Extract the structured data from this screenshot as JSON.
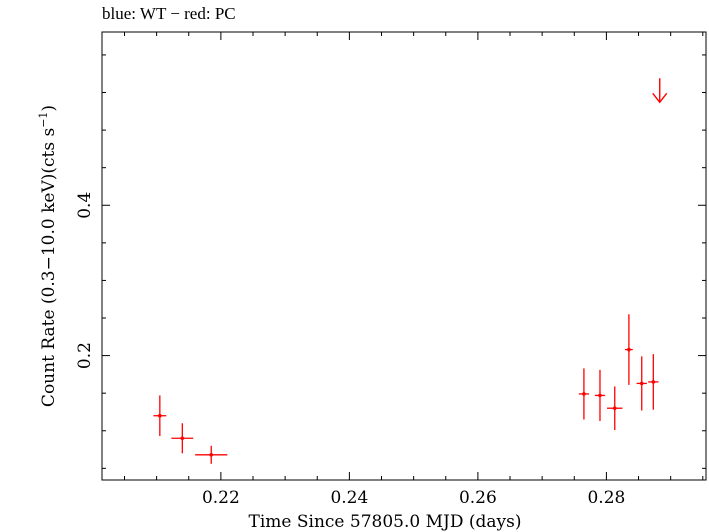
{
  "chart_data": {
    "type": "scatter",
    "title": "blue: WT − red: PC",
    "xlabel": "Time Since 57805.0 MJD (days)",
    "ylabel_main": "Count Rate (0.3−10.0 keV)(cts s",
    "ylabel_sup": "−1",
    "ylabel_close": ")",
    "xlim": [
      0.2015,
      0.2955
    ],
    "ylim": [
      0.0345,
      0.6305
    ],
    "x_ticks": [
      0.22,
      0.24,
      0.26,
      0.28
    ],
    "x_tick_labels": [
      "0.22",
      "0.24",
      "0.26",
      "0.28"
    ],
    "y_ticks": [
      0.2,
      0.4
    ],
    "y_tick_labels": [
      "0.2",
      "0.4"
    ],
    "grid": false,
    "series": [
      {
        "color": "#ff0000",
        "points": [
          {
            "x": 0.2105,
            "xerr": 0.001,
            "y": 0.12,
            "yerr_lo": 0.027,
            "yerr_hi": 0.027
          },
          {
            "x": 0.214,
            "xerr": 0.0017,
            "y": 0.09,
            "yerr_lo": 0.02,
            "yerr_hi": 0.02
          },
          {
            "x": 0.2185,
            "xerr": 0.0025,
            "y": 0.068,
            "yerr_lo": 0.012,
            "yerr_hi": 0.012
          },
          {
            "x": 0.2765,
            "xerr": 0.0008,
            "y": 0.149,
            "yerr_lo": 0.034,
            "yerr_hi": 0.034
          },
          {
            "x": 0.279,
            "xerr": 0.0008,
            "y": 0.147,
            "yerr_lo": 0.034,
            "yerr_hi": 0.034
          },
          {
            "x": 0.2813,
            "xerr": 0.0012,
            "y": 0.13,
            "yerr_lo": 0.029,
            "yerr_hi": 0.029
          },
          {
            "x": 0.2835,
            "xerr": 0.0006,
            "y": 0.208,
            "yerr_lo": 0.047,
            "yerr_hi": 0.047
          },
          {
            "x": 0.2855,
            "xerr": 0.0008,
            "y": 0.163,
            "yerr_lo": 0.036,
            "yerr_hi": 0.036
          },
          {
            "x": 0.2873,
            "xerr": 0.0008,
            "y": 0.165,
            "yerr_lo": 0.037,
            "yerr_hi": 0.037
          }
        ]
      }
    ],
    "upper_limits": [
      {
        "x": 0.2883,
        "y": 0.537,
        "color": "#ff0000"
      }
    ]
  }
}
